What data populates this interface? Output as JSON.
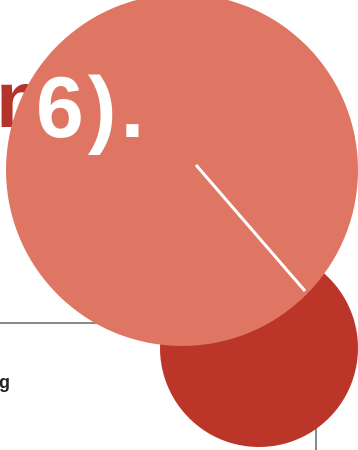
{
  "slide": {
    "title_fragment": "n",
    "number_text": "6).",
    "body_fragment": "g"
  },
  "colors": {
    "large_circle": "#df7563",
    "small_circle": "#bb3629",
    "title_red": "#b5332a",
    "text_white": "#ffffff",
    "rule_gray": "#8a8a8a"
  }
}
